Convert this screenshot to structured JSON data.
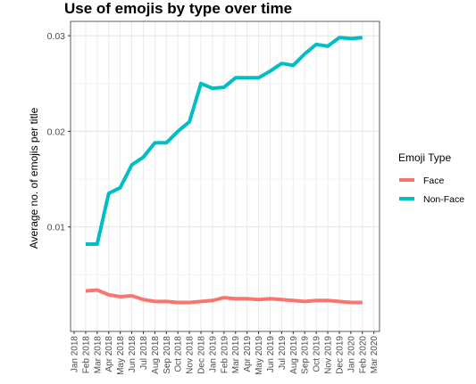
{
  "chart_data": {
    "type": "line",
    "title": "Use of emojis by type over time",
    "xlabel": "",
    "ylabel": "Average no. of emojis per title",
    "x": [
      "Jan 2018",
      "Feb 2018",
      "Mar 2018",
      "Apr 2018",
      "May 2018",
      "Jun 2018",
      "Jul 2018",
      "Aug 2018",
      "Sep 2018",
      "Oct 2018",
      "Nov 2018",
      "Dec 2018",
      "Jan 2019",
      "Feb 2019",
      "Mar 2019",
      "Apr 2019",
      "May 2019",
      "Jun 2019",
      "Jul 2019",
      "Aug 2019",
      "Sep 2019",
      "Oct 2019",
      "Nov 2019",
      "Dec 2019",
      "Jan 2020",
      "Feb 2020",
      "Mar 2020"
    ],
    "y_ticks": [
      0.01,
      0.02,
      0.03
    ],
    "y_tick_labels": [
      "0.01",
      "0.02",
      "0.03"
    ],
    "ylim": [
      0.0,
      0.0315
    ],
    "grid": true,
    "legend_position": "right",
    "legend_title": "Emoji Type",
    "series": [
      {
        "name": "Face",
        "color": "#F8766D",
        "points": [
          [
            "Feb 2018",
            0.0033
          ],
          [
            "Mar 2018",
            0.0034
          ],
          [
            "Apr 2018",
            0.0029
          ],
          [
            "May 2018",
            0.0027
          ],
          [
            "Jun 2018",
            0.0028
          ],
          [
            "Jul 2018",
            0.0024
          ],
          [
            "Aug 2018",
            0.0022
          ],
          [
            "Sep 2018",
            0.0022
          ],
          [
            "Oct 2018",
            0.0021
          ],
          [
            "Nov 2018",
            0.0021
          ],
          [
            "Dec 2018",
            0.0022
          ],
          [
            "Jan 2019",
            0.0023
          ],
          [
            "Feb 2019",
            0.0026
          ],
          [
            "Mar 2019",
            0.0025
          ],
          [
            "Apr 2019",
            0.0025
          ],
          [
            "May 2019",
            0.0024
          ],
          [
            "Jun 2019",
            0.0025
          ],
          [
            "Jul 2019",
            0.0024
          ],
          [
            "Aug 2019",
            0.0023
          ],
          [
            "Sep 2019",
            0.0022
          ],
          [
            "Oct 2019",
            0.0023
          ],
          [
            "Nov 2019",
            0.0023
          ],
          [
            "Dec 2019",
            0.0022
          ],
          [
            "Jan 2020",
            0.0021
          ],
          [
            "Feb 2020",
            0.0021
          ]
        ]
      },
      {
        "name": "Non-Face",
        "color": "#00BFC4",
        "points": [
          [
            "Feb 2018",
            0.0082
          ],
          [
            "Mar 2018",
            0.0082
          ],
          [
            "Apr 2018",
            0.0135
          ],
          [
            "May 2018",
            0.0141
          ],
          [
            "Jun 2018",
            0.0165
          ],
          [
            "Jul 2018",
            0.0173
          ],
          [
            "Aug 2018",
            0.0188
          ],
          [
            "Sep 2018",
            0.0188
          ],
          [
            "Oct 2018",
            0.02
          ],
          [
            "Nov 2018",
            0.021
          ],
          [
            "Dec 2018",
            0.025
          ],
          [
            "Jan 2019",
            0.0245
          ],
          [
            "Feb 2019",
            0.0246
          ],
          [
            "Mar 2019",
            0.0256
          ],
          [
            "Apr 2019",
            0.0256
          ],
          [
            "May 2019",
            0.0256
          ],
          [
            "Jun 2019",
            0.0263
          ],
          [
            "Jul 2019",
            0.0271
          ],
          [
            "Aug 2019",
            0.0269
          ],
          [
            "Sep 2019",
            0.0281
          ],
          [
            "Oct 2019",
            0.0291
          ],
          [
            "Nov 2019",
            0.0289
          ],
          [
            "Dec 2019",
            0.0298
          ],
          [
            "Jan 2020",
            0.0297
          ],
          [
            "Feb 2020",
            0.0298
          ]
        ]
      }
    ]
  }
}
